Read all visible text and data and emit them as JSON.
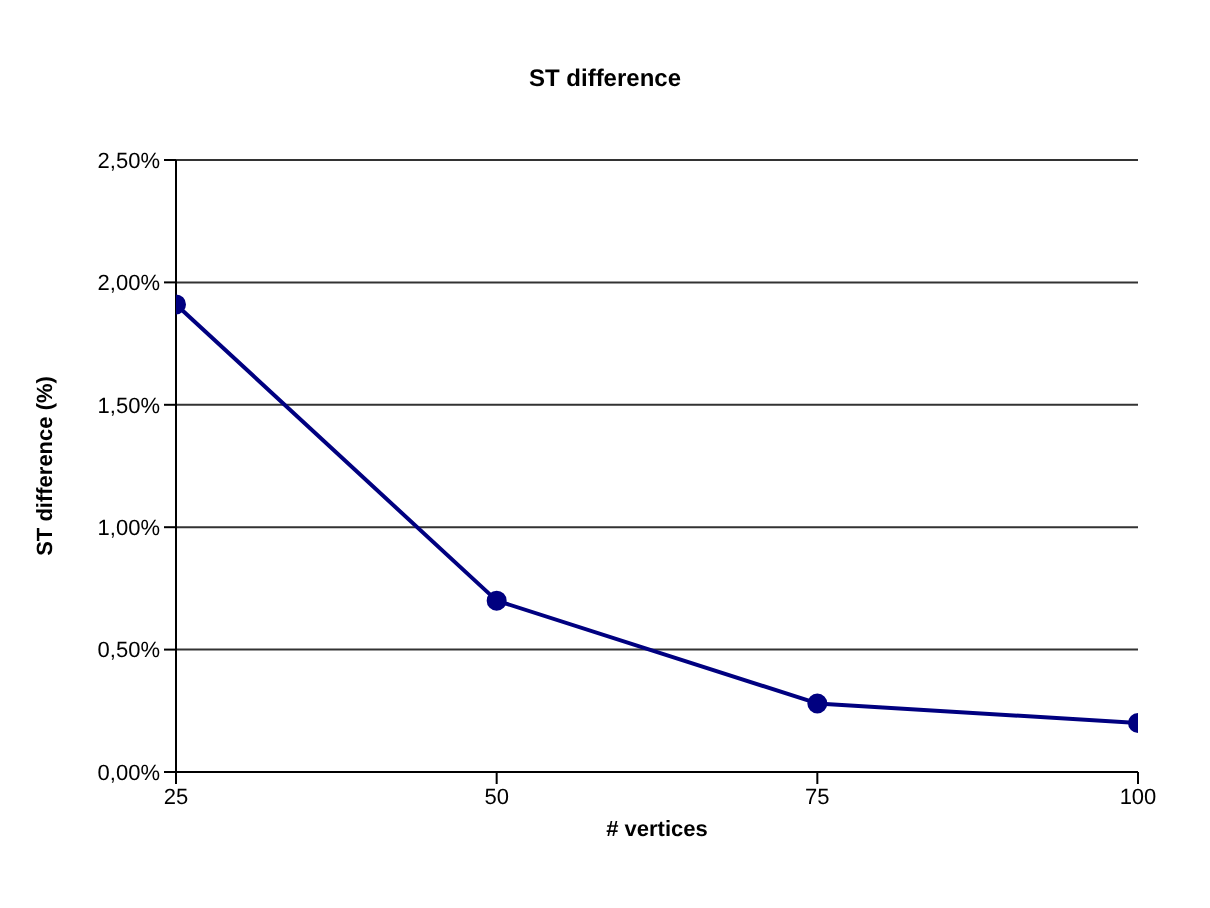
{
  "chart_data": {
    "type": "line",
    "title": "ST difference",
    "xlabel": "# vertices",
    "ylabel": "ST difference (%)",
    "x": [
      25,
      50,
      75,
      100
    ],
    "series": [
      {
        "color": "#000080",
        "values": [
          1.91,
          0.7,
          0.28,
          0.2
        ]
      }
    ],
    "xlim": [
      25,
      100
    ],
    "xticks": [
      25,
      50,
      75,
      100
    ],
    "ylim": [
      0,
      2.5
    ],
    "yticks": [
      {
        "value": 0,
        "label": "0,00%"
      },
      {
        "value": 0.5,
        "label": "0,50%"
      },
      {
        "value": 1,
        "label": "1,00%"
      },
      {
        "value": 1.5,
        "label": "1,50%"
      },
      {
        "value": 2,
        "label": "2,00%"
      },
      {
        "value": 2.5,
        "label": "2,50%"
      }
    ],
    "grid": "y",
    "marker": "circle",
    "line_style": "solid",
    "legend": false
  }
}
